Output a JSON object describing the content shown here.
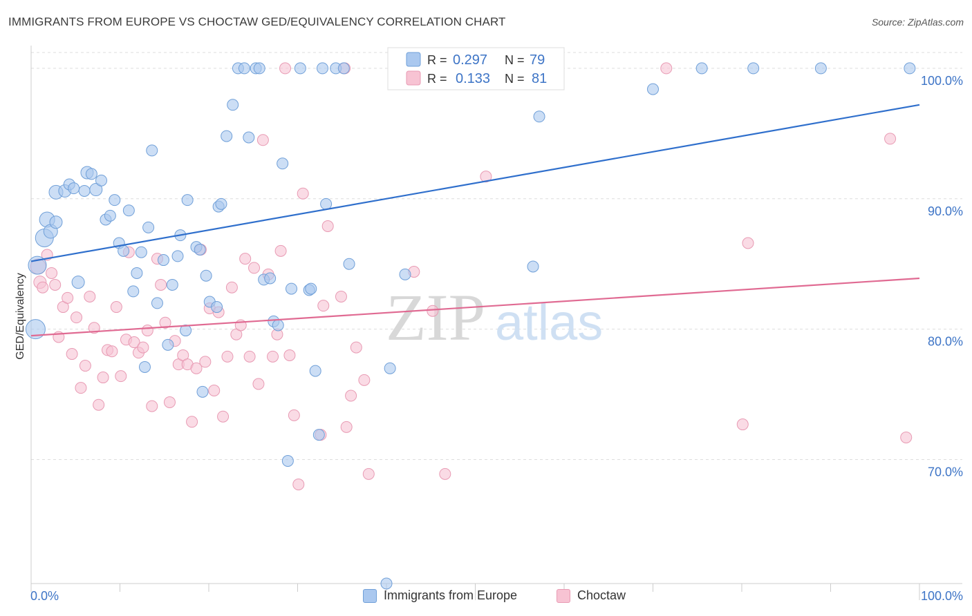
{
  "title": "IMMIGRANTS FROM EUROPE VS CHOCTAW GED/EQUIVALENCY CORRELATION CHART",
  "source": "Source: ZipAtlas.com",
  "watermark": {
    "zip": "ZIP",
    "atlas": "atlas"
  },
  "colors": {
    "blue_fill": "#aac8ef",
    "blue_stroke": "#6f9fd8",
    "blue_line": "#2f6fcc",
    "pink_fill": "#f7c3d3",
    "pink_stroke": "#e89ab3",
    "pink_line": "#e06a92",
    "axis_text": "#3d74c6",
    "grid": "#dddddd"
  },
  "chart_data": {
    "type": "scatter",
    "title": "IMMIGRANTS FROM EUROPE VS CHOCTAW GED/EQUIVALENCY CORRELATION CHART",
    "xlabel": "",
    "ylabel": "GED/Equivalency",
    "xlim": [
      0,
      100
    ],
    "ylim": [
      60.5,
      101.0
    ],
    "x_tick_labels": [
      "0.0%",
      "100.0%"
    ],
    "y_ticks": [
      100,
      90,
      80,
      70
    ],
    "y_tick_labels": [
      "100.0%",
      "90.0%",
      "80.0%",
      "70.0%"
    ],
    "grid": true,
    "legend_top": [
      {
        "r_label": "R =",
        "r": "0.297",
        "n_label": "N =",
        "n": "79"
      },
      {
        "r_label": "R =",
        "r": "0.133",
        "n_label": "N =",
        "n": "81"
      }
    ],
    "series": [
      {
        "name": "Immigrants from Europe",
        "trend": [
          [
            0,
            85.2
          ],
          [
            100,
            97.2
          ]
        ],
        "points": [
          [
            0.5,
            80.0,
            14
          ],
          [
            0.7,
            84.9,
            13
          ],
          [
            1.5,
            87.0,
            13
          ],
          [
            1.8,
            88.4,
            11
          ],
          [
            2.2,
            87.5,
            10
          ],
          [
            2.8,
            88.2,
            9
          ],
          [
            2.8,
            90.5,
            10
          ],
          [
            3.8,
            90.6,
            9
          ],
          [
            4.3,
            91.1,
            8
          ],
          [
            4.8,
            90.8,
            8
          ],
          [
            5.3,
            83.6,
            9
          ],
          [
            6.0,
            90.6,
            8
          ],
          [
            6.3,
            92.0,
            9
          ],
          [
            6.8,
            91.9,
            8
          ],
          [
            7.3,
            90.7,
            9
          ],
          [
            7.9,
            91.4,
            8
          ],
          [
            8.4,
            88.4,
            8
          ],
          [
            8.9,
            88.7,
            8
          ],
          [
            9.4,
            89.9,
            8
          ],
          [
            9.9,
            86.6,
            8
          ],
          [
            10.4,
            86.0,
            8
          ],
          [
            11.0,
            89.1,
            8
          ],
          [
            11.5,
            82.9,
            8
          ],
          [
            11.9,
            84.3,
            8
          ],
          [
            12.4,
            85.9,
            8
          ],
          [
            12.8,
            77.1,
            8
          ],
          [
            13.2,
            87.8,
            8
          ],
          [
            13.6,
            93.7,
            8
          ],
          [
            14.2,
            82.0,
            8
          ],
          [
            14.9,
            85.3,
            8
          ],
          [
            15.4,
            78.8,
            8
          ],
          [
            15.9,
            83.4,
            8
          ],
          [
            16.5,
            85.6,
            8
          ],
          [
            16.8,
            87.2,
            8
          ],
          [
            17.4,
            79.9,
            8
          ],
          [
            17.6,
            89.9,
            8
          ],
          [
            18.6,
            86.3,
            8
          ],
          [
            19.0,
            86.1,
            8
          ],
          [
            19.3,
            75.2,
            8
          ],
          [
            19.7,
            84.1,
            8
          ],
          [
            20.1,
            82.1,
            8
          ],
          [
            20.9,
            81.7,
            8
          ],
          [
            21.1,
            89.4,
            8
          ],
          [
            21.4,
            89.6,
            8
          ],
          [
            22.0,
            94.8,
            8
          ],
          [
            22.7,
            97.2,
            8
          ],
          [
            23.3,
            100.0,
            8
          ],
          [
            24.5,
            94.7,
            8
          ],
          [
            25.3,
            100.0,
            8
          ],
          [
            25.7,
            100.0,
            8
          ],
          [
            26.2,
            83.8,
            8
          ],
          [
            26.9,
            83.9,
            8
          ],
          [
            27.3,
            80.6,
            8
          ],
          [
            27.8,
            80.3,
            8
          ],
          [
            28.3,
            92.7,
            8
          ],
          [
            29.3,
            83.1,
            8
          ],
          [
            30.3,
            100.0,
            8
          ],
          [
            31.3,
            83.0,
            8
          ],
          [
            31.5,
            83.1,
            8
          ],
          [
            32.0,
            76.8,
            8
          ],
          [
            32.4,
            71.9,
            8
          ],
          [
            32.8,
            100.0,
            8
          ],
          [
            33.2,
            89.6,
            8
          ],
          [
            34.3,
            100.0,
            8
          ],
          [
            35.2,
            100.0,
            8
          ],
          [
            35.8,
            85.0,
            8
          ],
          [
            40.0,
            60.5,
            8
          ],
          [
            40.4,
            77.0,
            8
          ],
          [
            42.1,
            84.2,
            8
          ],
          [
            48.5,
            100.0,
            8
          ],
          [
            56.5,
            84.8,
            8
          ],
          [
            57.2,
            96.3,
            8
          ],
          [
            70.0,
            98.4,
            8
          ],
          [
            75.5,
            100.0,
            8
          ],
          [
            81.3,
            100.0,
            8
          ],
          [
            88.9,
            100.0,
            8
          ],
          [
            98.9,
            100.0,
            8
          ],
          [
            28.9,
            69.9,
            8
          ],
          [
            24.0,
            100.0,
            8
          ]
        ]
      },
      {
        "name": "Choctaw",
        "trend": [
          [
            0,
            79.5
          ],
          [
            100,
            83.9
          ]
        ],
        "points": [
          [
            0.8,
            84.8,
            11
          ],
          [
            1.0,
            83.6,
            9
          ],
          [
            1.3,
            83.2,
            8
          ],
          [
            1.8,
            85.7,
            8
          ],
          [
            2.3,
            84.3,
            8
          ],
          [
            2.7,
            83.4,
            8
          ],
          [
            3.1,
            79.4,
            8
          ],
          [
            3.6,
            81.7,
            8
          ],
          [
            4.1,
            82.4,
            8
          ],
          [
            4.6,
            78.1,
            8
          ],
          [
            5.1,
            80.9,
            8
          ],
          [
            5.6,
            75.5,
            8
          ],
          [
            6.1,
            77.2,
            8
          ],
          [
            6.6,
            82.5,
            8
          ],
          [
            7.1,
            80.1,
            8
          ],
          [
            7.6,
            74.2,
            8
          ],
          [
            8.1,
            76.3,
            8
          ],
          [
            8.6,
            78.4,
            8
          ],
          [
            9.1,
            78.3,
            8
          ],
          [
            9.6,
            81.7,
            8
          ],
          [
            10.1,
            76.4,
            8
          ],
          [
            10.7,
            79.2,
            8
          ],
          [
            11.0,
            85.9,
            8
          ],
          [
            11.6,
            79.0,
            8
          ],
          [
            12.1,
            78.2,
            8
          ],
          [
            12.6,
            78.6,
            8
          ],
          [
            13.1,
            79.9,
            8
          ],
          [
            13.6,
            74.1,
            8
          ],
          [
            14.2,
            85.4,
            8
          ],
          [
            14.6,
            83.4,
            8
          ],
          [
            15.1,
            80.5,
            8
          ],
          [
            15.6,
            74.4,
            8
          ],
          [
            16.2,
            79.1,
            8
          ],
          [
            16.6,
            77.3,
            8
          ],
          [
            17.1,
            78.0,
            8
          ],
          [
            17.6,
            77.3,
            8
          ],
          [
            18.1,
            72.9,
            8
          ],
          [
            18.6,
            77.0,
            8
          ],
          [
            19.1,
            86.1,
            8
          ],
          [
            19.6,
            77.5,
            8
          ],
          [
            20.1,
            81.6,
            8
          ],
          [
            20.6,
            75.3,
            8
          ],
          [
            21.1,
            81.3,
            8
          ],
          [
            21.6,
            73.3,
            8
          ],
          [
            22.1,
            77.9,
            8
          ],
          [
            22.6,
            83.2,
            8
          ],
          [
            23.1,
            79.6,
            8
          ],
          [
            23.6,
            80.3,
            8
          ],
          [
            24.1,
            85.4,
            8
          ],
          [
            24.6,
            77.9,
            8
          ],
          [
            25.1,
            84.7,
            8
          ],
          [
            25.6,
            75.8,
            8
          ],
          [
            26.1,
            94.5,
            8
          ],
          [
            26.7,
            84.2,
            8
          ],
          [
            27.2,
            77.9,
            8
          ],
          [
            27.7,
            79.6,
            8
          ],
          [
            28.1,
            86.0,
            8
          ],
          [
            28.6,
            100.0,
            8
          ],
          [
            29.1,
            78.0,
            8
          ],
          [
            29.6,
            73.4,
            8
          ],
          [
            30.1,
            68.1,
            8
          ],
          [
            30.6,
            90.4,
            8
          ],
          [
            32.6,
            71.9,
            8
          ],
          [
            32.9,
            81.8,
            8
          ],
          [
            33.4,
            87.9,
            8
          ],
          [
            34.9,
            82.5,
            8
          ],
          [
            35.5,
            72.5,
            8
          ],
          [
            36.0,
            74.9,
            8
          ],
          [
            36.6,
            78.6,
            8
          ],
          [
            37.5,
            76.1,
            8
          ],
          [
            38.0,
            68.9,
            8
          ],
          [
            43.1,
            84.4,
            8
          ],
          [
            45.2,
            81.4,
            8
          ],
          [
            46.6,
            68.9,
            8
          ],
          [
            51.2,
            91.7,
            8
          ],
          [
            71.5,
            100.0,
            8
          ],
          [
            80.1,
            72.7,
            8
          ],
          [
            80.7,
            86.6,
            8
          ],
          [
            96.7,
            94.6,
            8
          ],
          [
            98.5,
            71.7,
            8
          ],
          [
            35.3,
            100.0,
            8
          ]
        ]
      }
    ]
  }
}
